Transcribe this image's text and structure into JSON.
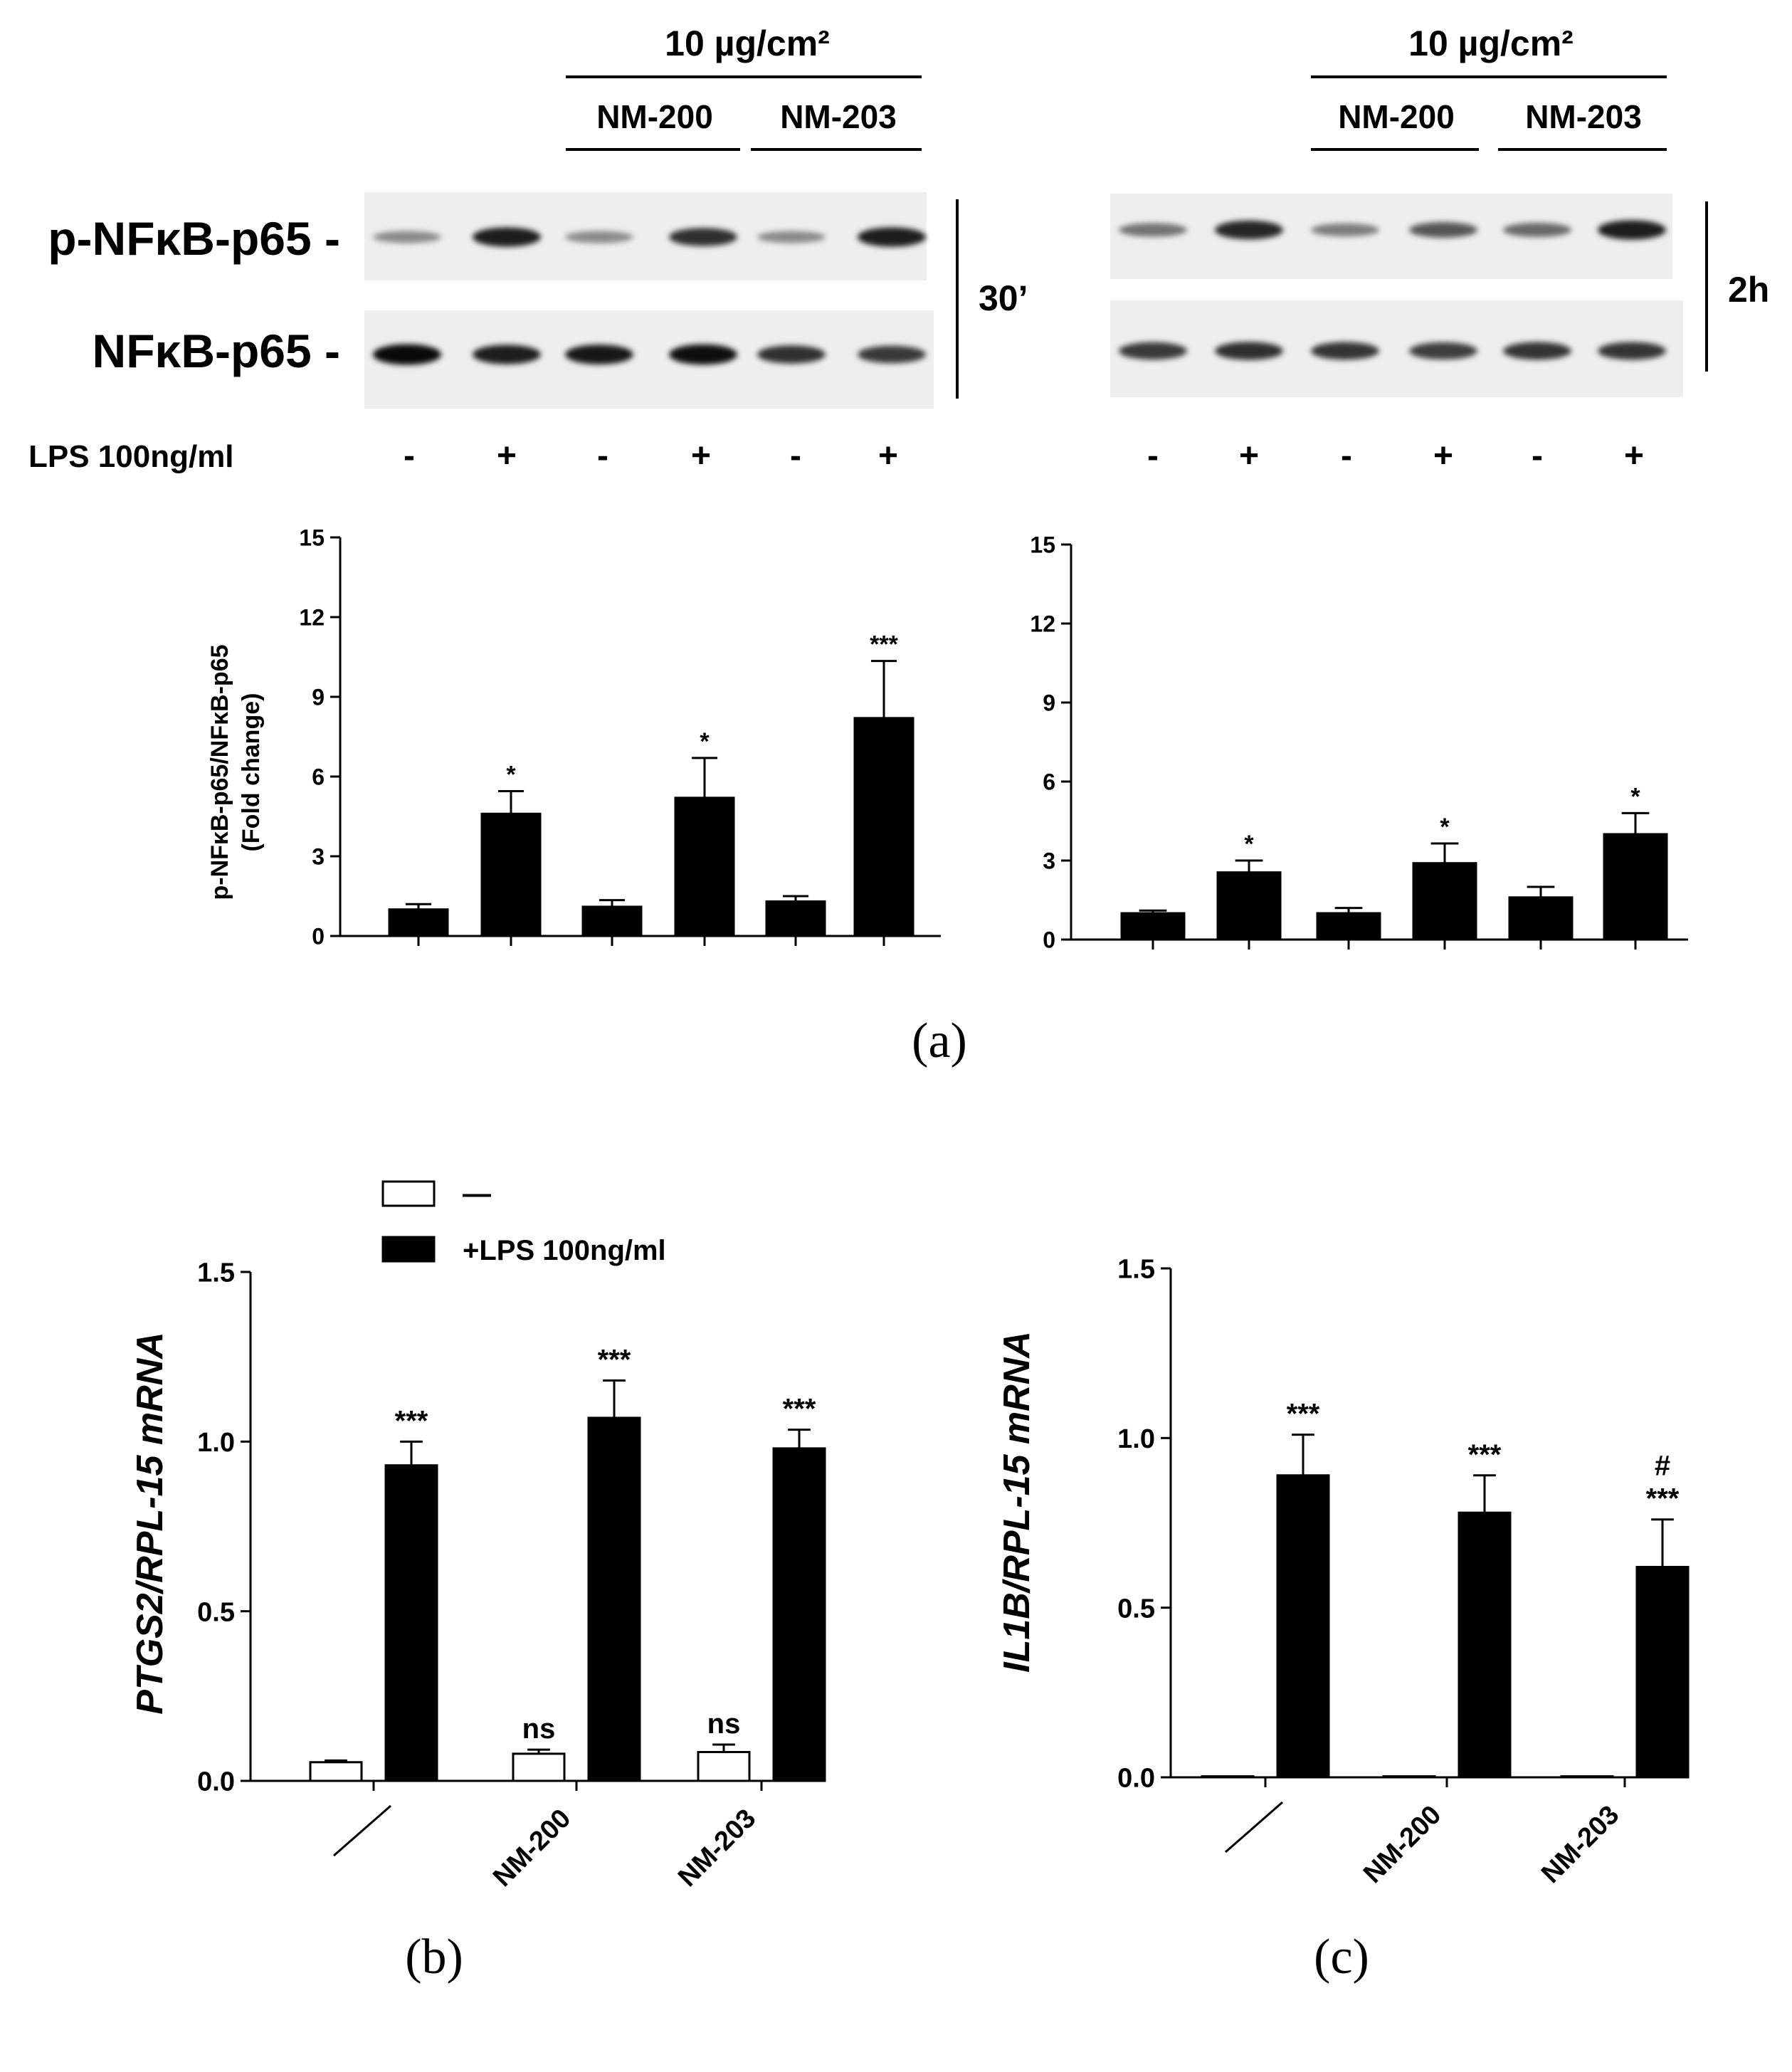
{
  "panel_a": {
    "conc_label": "10 µg/cm²",
    "group_labels": [
      "NM-200",
      "NM-203"
    ],
    "blot_labels": [
      "p-NFκB-p65 -",
      "NFκB-p65 -"
    ],
    "time_labels": [
      "30’",
      "2h"
    ],
    "lps_row_label": "LPS 100ng/ml",
    "lps_signs": [
      "-",
      "+",
      "-",
      "+",
      "-",
      "+"
    ],
    "caption": "(a)"
  },
  "panel_b": {
    "caption": "(b)",
    "legend": [
      "—",
      "+LPS 100ng/ml"
    ]
  },
  "panel_c": {
    "caption": "(c)"
  },
  "chart_data": [
    {
      "type": "bar",
      "panel": "a-left",
      "title": "",
      "ylabel": "p-NFκB-p65/NFκB-p65 (Fold change)",
      "ylim": [
        0,
        15
      ],
      "yticks": [
        0,
        3,
        6,
        9,
        12,
        15
      ],
      "values": [
        1.0,
        4.6,
        1.1,
        5.2,
        1.3,
        8.2
      ],
      "errors": [
        0.2,
        0.85,
        0.25,
        1.5,
        0.2,
        2.15
      ],
      "annotations": [
        "",
        "*",
        "",
        "*",
        "",
        "***"
      ]
    },
    {
      "type": "bar",
      "panel": "a-right",
      "title": "",
      "ylabel": "",
      "ylim": [
        0,
        15
      ],
      "yticks": [
        0,
        3,
        6,
        9,
        12,
        15
      ],
      "values": [
        1.0,
        2.55,
        1.0,
        2.9,
        1.6,
        4.0
      ],
      "errors": [
        0.1,
        0.45,
        0.2,
        0.75,
        0.4,
        0.8
      ],
      "annotations": [
        "",
        "*",
        "",
        "*",
        "",
        "*"
      ]
    },
    {
      "type": "bar",
      "panel": "b",
      "ylabel": "PTGS2/RPL-15 mRNA",
      "ylim": [
        0,
        1.5
      ],
      "yticks": [
        "0.0",
        "0.5",
        "1.0",
        "1.5"
      ],
      "categories": [
        "—",
        "NM-200",
        "NM-203"
      ],
      "series": [
        {
          "name": "—",
          "values": [
            0.055,
            0.08,
            0.085
          ],
          "errors": [
            0.005,
            0.012,
            0.022
          ],
          "annotations": [
            "",
            "ns",
            "ns"
          ]
        },
        {
          "name": "+LPS 100ng/ml",
          "values": [
            0.93,
            1.07,
            0.98
          ],
          "errors": [
            0.07,
            0.11,
            0.055
          ],
          "annotations": [
            "***",
            "***",
            "***"
          ]
        }
      ]
    },
    {
      "type": "bar",
      "panel": "c",
      "ylabel": "IL1B/RPL-15 mRNA",
      "ylim": [
        0,
        1.5
      ],
      "yticks": [
        "0.0",
        "0.5",
        "1.0",
        "1.5"
      ],
      "categories": [
        "—",
        "NM-200",
        "NM-203"
      ],
      "series": [
        {
          "name": "—",
          "values": [
            0.003,
            0.003,
            0.003
          ],
          "errors": [
            0,
            0,
            0
          ],
          "annotations": [
            "",
            "",
            ""
          ]
        },
        {
          "name": "+LPS 100ng/ml",
          "values": [
            0.89,
            0.78,
            0.62
          ],
          "errors": [
            0.12,
            0.11,
            0.14
          ],
          "annotations": [
            "***",
            "***",
            "#\n***"
          ]
        }
      ]
    }
  ]
}
